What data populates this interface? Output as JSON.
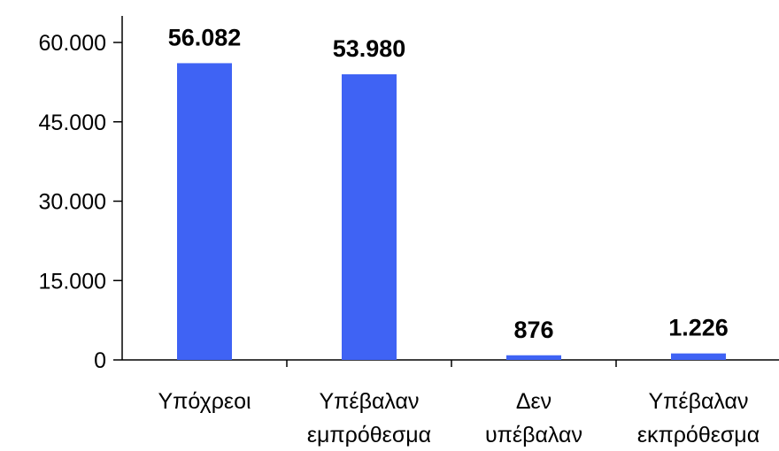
{
  "chart_data": {
    "type": "bar",
    "title": "",
    "xlabel": "",
    "ylabel": "",
    "categories": [
      [
        "Υπόχρεοι"
      ],
      [
        "Υπέβαλαν",
        "εμπρόθεσμα"
      ],
      [
        "Δεν",
        "υπέβαλαν"
      ],
      [
        "Υπέβαλαν",
        "εκπρόθεσμα"
      ]
    ],
    "values": [
      56082,
      53980,
      876,
      1226
    ],
    "value_labels": [
      "56.082",
      "53.980",
      "876",
      "1.226"
    ],
    "yticks": [
      0,
      15000,
      30000,
      45000,
      60000
    ],
    "ytick_labels": [
      "0",
      "15.000",
      "30.000",
      "45.000",
      "60.000"
    ],
    "ylim": [
      0,
      60000
    ],
    "grid": false,
    "legend": "none",
    "bar_color": "#3F63F4"
  }
}
